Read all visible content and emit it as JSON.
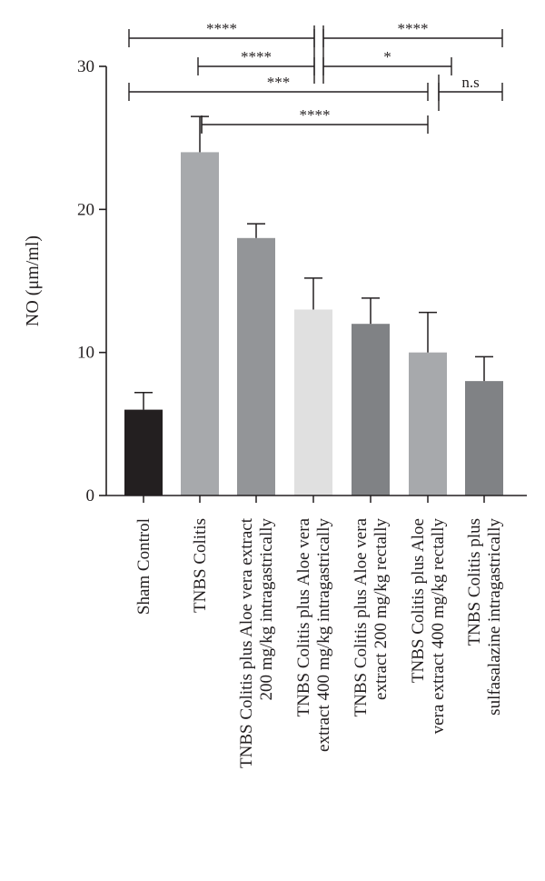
{
  "chart_data": {
    "type": "bar",
    "ylabel": "NO (μm/ml)",
    "ylim": [
      0,
      30
    ],
    "yticks": [
      0,
      10,
      20,
      30
    ],
    "categories": [
      [
        "Sham Control"
      ],
      [
        "TNBS Colitis"
      ],
      [
        "TNBS Colitis plus Aloe vera extract",
        "200 mg/kg intragastrically"
      ],
      [
        "TNBS Colitis plus Aloe vera",
        "extract 400 mg/kg intragastrically"
      ],
      [
        "TNBS Colitis plus Aloe vera",
        "extract 200 mg/kg rectally"
      ],
      [
        "TNBS Colitis plus Aloe",
        "vera extract 400 mg/kg rectally"
      ],
      [
        "TNBS Colitis plus",
        "sulfasalazine intragastrically"
      ]
    ],
    "values": [
      6.0,
      24.0,
      18.0,
      13.0,
      12.0,
      10.0,
      8.0
    ],
    "errors": [
      1.2,
      2.5,
      1.0,
      2.2,
      1.8,
      2.8,
      1.7
    ],
    "colors": [
      "#231f20",
      "#a7a9ac",
      "#939598",
      "#e0e0e0",
      "#808285",
      "#a7a9ac",
      "#808285"
    ],
    "significance": [
      {
        "from": 0,
        "to": 3,
        "label": "****"
      },
      {
        "from": 1,
        "to": 3,
        "label": "****"
      },
      {
        "from": 0,
        "to": 5,
        "label": "***"
      },
      {
        "from": 1,
        "to": 5,
        "label": "****"
      },
      {
        "from": 3,
        "to": 6,
        "label": "****"
      },
      {
        "from": 3,
        "to": 5,
        "label": "*"
      },
      {
        "from": 5,
        "to": 6,
        "label": "n.s"
      }
    ]
  }
}
